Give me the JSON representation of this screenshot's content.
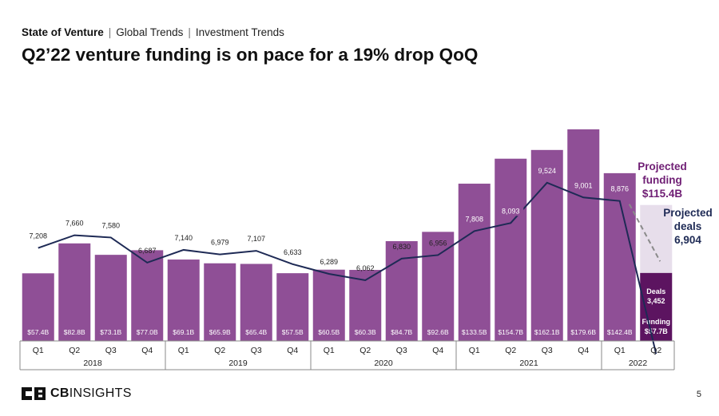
{
  "header": {
    "breadcrumb": [
      "State of Venture",
      "Global Trends",
      "Investment Trends"
    ],
    "title": "Q2’22 venture funding is on pace for a 19% drop QoQ"
  },
  "footer": {
    "logo_bold": "CB",
    "logo_rest": "INSIGHTS",
    "page_number": "5"
  },
  "colors": {
    "bar": "#8F4F96",
    "projected_bar": "#E7DEEB",
    "q2_2022_bar": "#5C1460",
    "line": "#1E2A55",
    "projected_text": "#6F1E74",
    "axis": "#888888"
  },
  "chart_data": {
    "type": "bar",
    "y2_type": "line",
    "categories": [
      "Q1",
      "Q2",
      "Q3",
      "Q4",
      "Q1",
      "Q2",
      "Q3",
      "Q4",
      "Q1",
      "Q2",
      "Q3",
      "Q4",
      "Q1",
      "Q2",
      "Q3",
      "Q4",
      "Q1",
      "Q2"
    ],
    "years": [
      {
        "label": "2018",
        "count": 4
      },
      {
        "label": "2019",
        "count": 4
      },
      {
        "label": "2020",
        "count": 4
      },
      {
        "label": "2021",
        "count": 4
      },
      {
        "label": "2022",
        "count": 2
      }
    ],
    "funding_billions": [
      57.4,
      82.8,
      73.1,
      77.0,
      69.1,
      65.9,
      65.4,
      57.5,
      60.5,
      60.3,
      84.7,
      92.6,
      133.5,
      154.7,
      162.1,
      179.6,
      142.4,
      57.7
    ],
    "funding_labels": [
      "$57.4B",
      "$82.8B",
      "$73.1B",
      "$77.0B",
      "$69.1B",
      "$65.9B",
      "$65.4B",
      "$57.5B",
      "$60.5B",
      "$60.3B",
      "$84.7B",
      "$92.6B",
      "$133.5B",
      "$154.7B",
      "$162.1B",
      "$179.6B",
      "$142.4B",
      "$57.7B"
    ],
    "deals": [
      7208,
      7660,
      7580,
      6687,
      7140,
      6979,
      7107,
      6633,
      6289,
      6062,
      6830,
      6956,
      7808,
      8093,
      9524,
      9001,
      8876,
      3452
    ],
    "deal_labels": [
      "7,208",
      "7,660",
      "7,580",
      "6,687",
      "7,140",
      "6,979",
      "7,107",
      "6,633",
      "6,289",
      "6,062",
      "6,830",
      "6,956",
      "7,808",
      "8,093",
      "9,524",
      "9,001",
      "8,876",
      "3,452"
    ],
    "projected": {
      "funding_billions": 115.4,
      "deals": 6904,
      "funding_title": [
        "Projected",
        "funding",
        "$115.4B"
      ],
      "deals_title": [
        "Projected",
        "deals",
        "6,904"
      ]
    },
    "q2_2022_inner_labels": {
      "deals_word": "Deals",
      "deals_value": "3,452",
      "funding_word": "Funding",
      "funding_value": "$57.7B"
    }
  }
}
